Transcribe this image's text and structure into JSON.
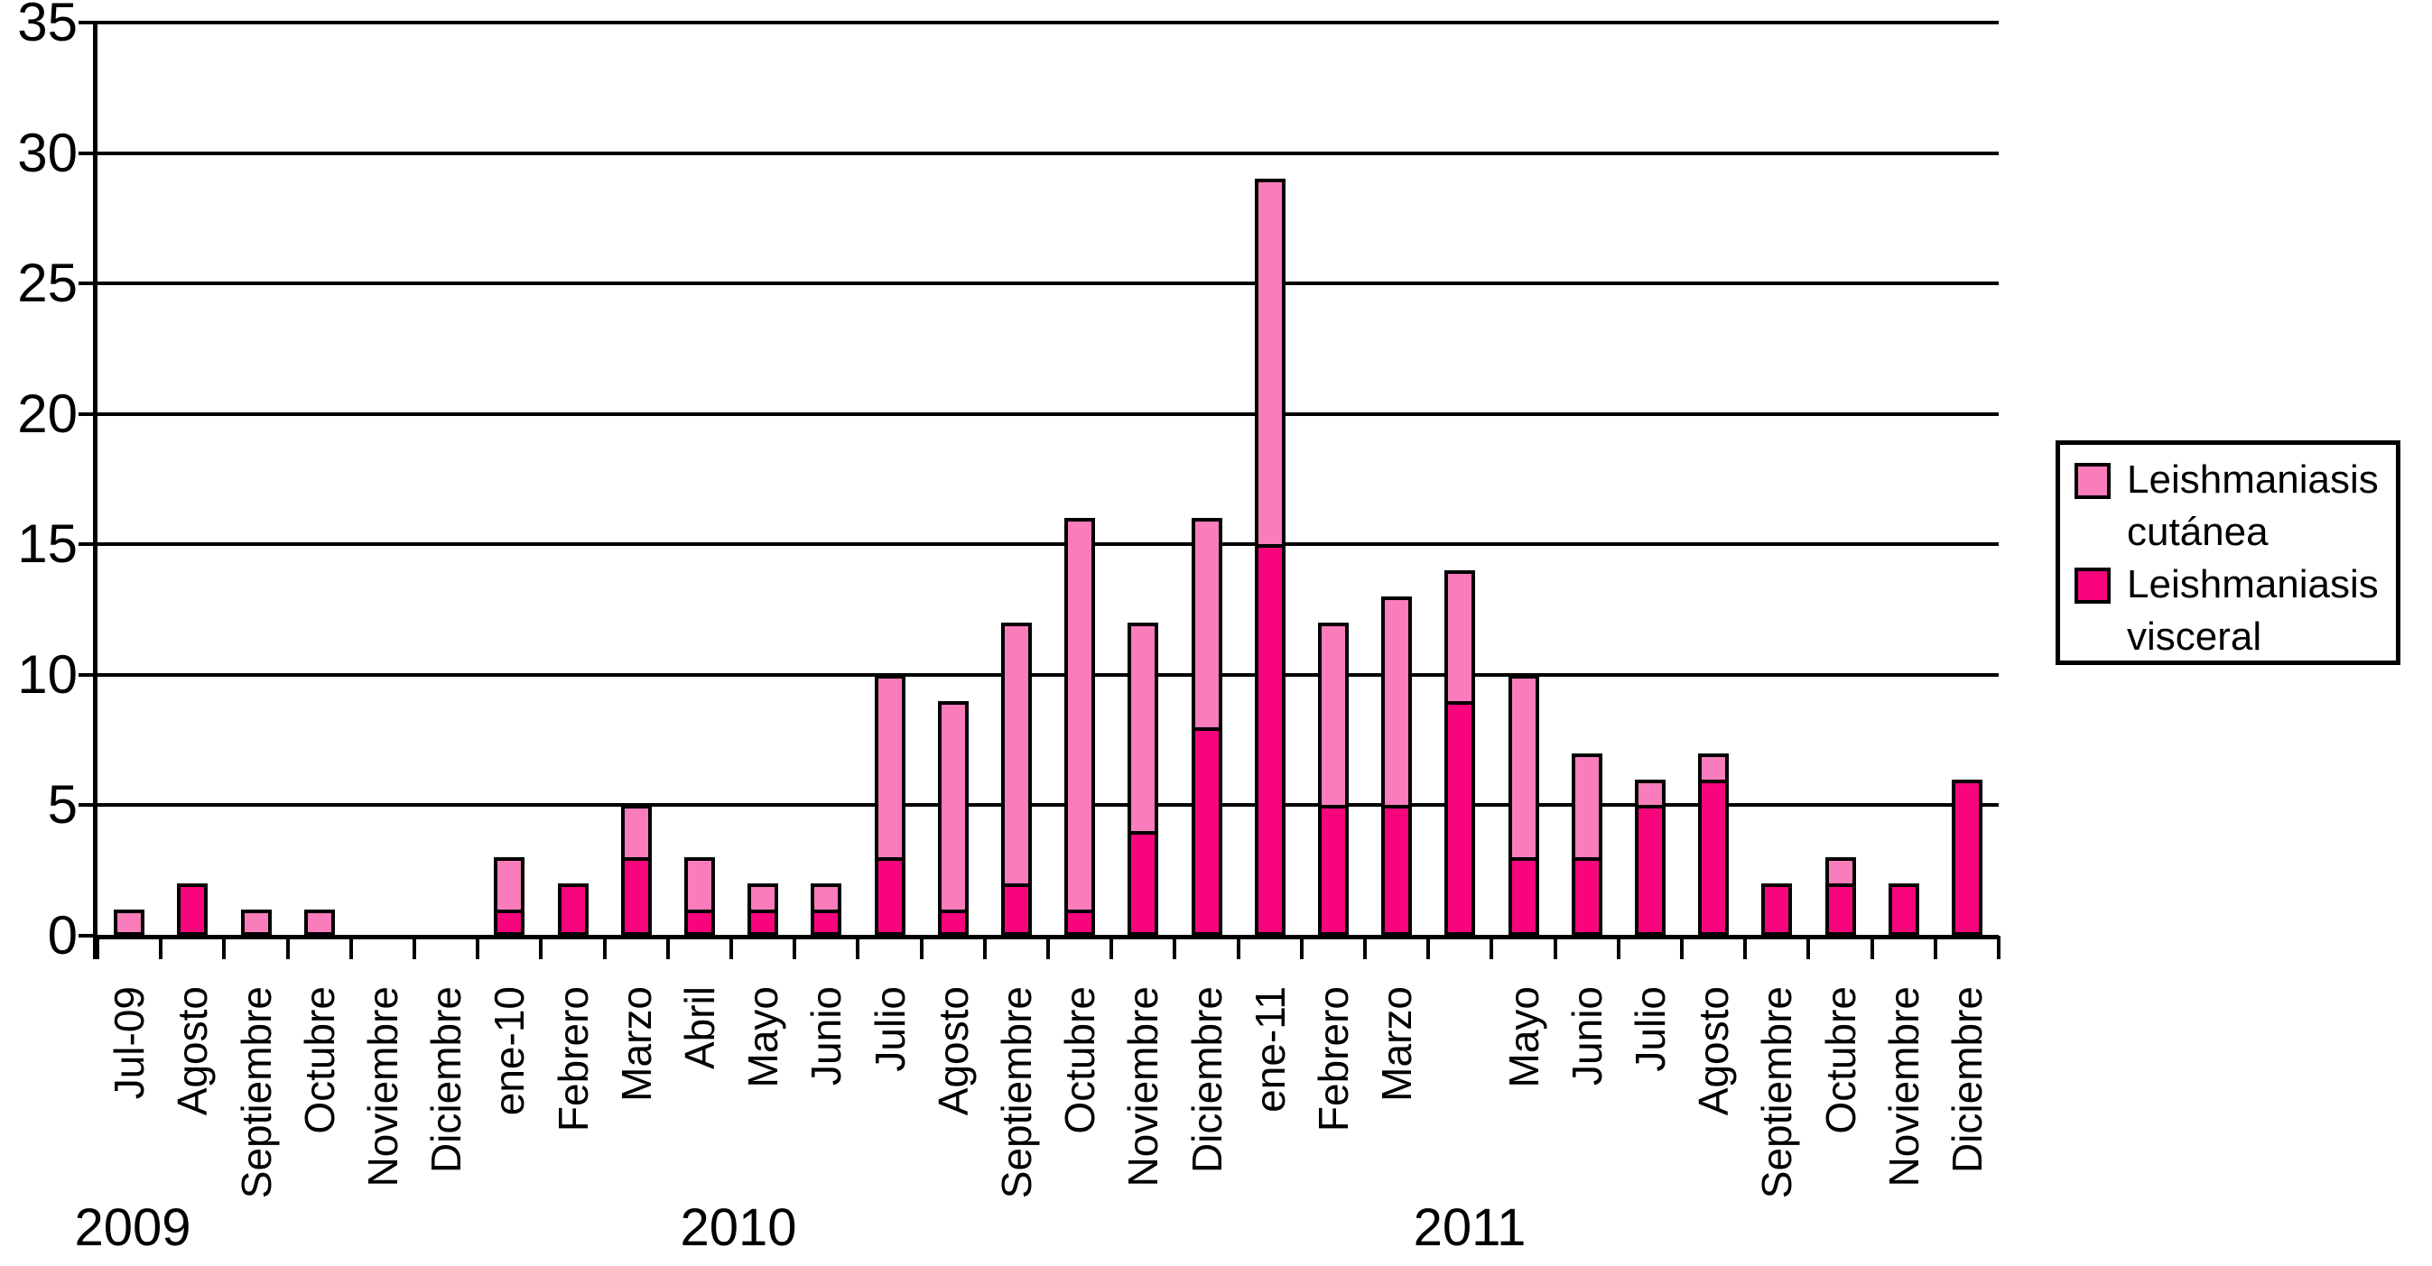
{
  "chart_data": {
    "type": "bar",
    "stacked": true,
    "title": "",
    "xlabel": "",
    "ylabel": "",
    "ylim": [
      0,
      35
    ],
    "y_ticks": [
      0,
      5,
      10,
      15,
      20,
      25,
      30,
      35
    ],
    "grid": "horizontal",
    "legend_position": "right",
    "categories": [
      "Jul-09",
      "Agosto",
      "Septiembre",
      "Octubre",
      "Noviembre",
      "Diciembre",
      "ene-10",
      "Febrero",
      "Marzo",
      "Abril",
      "Mayo",
      "Junio",
      "Julio",
      "Agosto",
      "Septiembre",
      "Octubre",
      "Noviembre",
      "Diciembre",
      "ene-11",
      "Febrero",
      "Marzo",
      "",
      "Mayo",
      "Junio",
      "Julio",
      "Agosto",
      "Septiembre",
      "Octubre",
      "Noviembre",
      "Diciembre"
    ],
    "series": [
      {
        "name": "Leishmaniasis visceral",
        "color": "#F8057E",
        "values": [
          0,
          2,
          0,
          0,
          0,
          0,
          1,
          2,
          3,
          1,
          1,
          1,
          3,
          1,
          2,
          1,
          4,
          8,
          15,
          5,
          5,
          9,
          3,
          3,
          5,
          6,
          2,
          2,
          2,
          6
        ]
      },
      {
        "name": "Leishmaniasis cutánea",
        "color": "#F97CBB",
        "values": [
          1,
          0,
          1,
          1,
          0,
          0,
          2,
          0,
          2,
          2,
          1,
          1,
          7,
          8,
          10,
          15,
          8,
          8,
          14,
          7,
          8,
          5,
          7,
          4,
          1,
          1,
          0,
          1,
          0,
          0
        ]
      }
    ],
    "year_labels": [
      {
        "text": "2009",
        "x": 147
      },
      {
        "text": "2010",
        "x": 818
      },
      {
        "text": "2011",
        "x": 1628
      }
    ]
  },
  "legend": {
    "items": [
      {
        "line1": "Leishmaniasis",
        "line2": "cutánea",
        "color": "#F97CBB"
      },
      {
        "line1": "Leishmaniasis",
        "line2": "visceral",
        "color": "#F8057E"
      }
    ]
  },
  "colors": {
    "axis": "#000000",
    "background": "#FFFFFF"
  }
}
